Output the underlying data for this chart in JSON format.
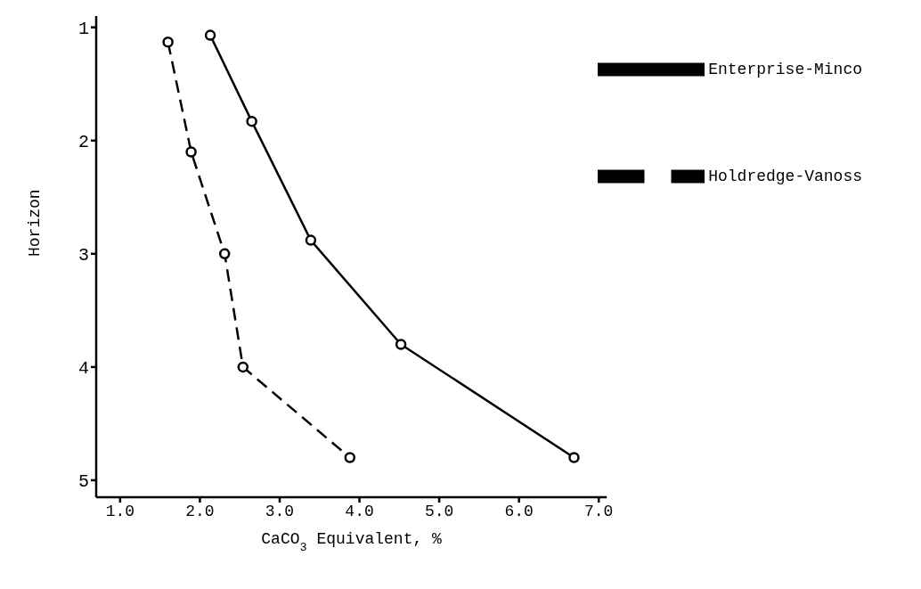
{
  "chart_data": {
    "type": "line",
    "xlabel": "CaCO$_{3}$ Equivalent, %",
    "ylabel": "Horizon",
    "xlim": [
      0.7,
      7.1
    ],
    "xticks": [
      {
        "value": 1,
        "label": "1.0"
      },
      {
        "value": 2,
        "label": "2.0"
      },
      {
        "value": 3,
        "label": "3.0"
      },
      {
        "value": 4,
        "label": "4.0"
      },
      {
        "value": 5,
        "label": "5.0"
      },
      {
        "value": 6,
        "label": "6.0"
      },
      {
        "value": 7,
        "label": "7.0"
      }
    ],
    "ylim": [
      5.15,
      0.9
    ],
    "yticks": [
      1,
      2,
      3,
      4,
      5
    ],
    "grid": false,
    "legend": "top right",
    "marker": "circle",
    "series": [
      {
        "name": "Enterprise-Minco",
        "color": "#000000",
        "line_style": "solid",
        "x": [
          2.13,
          2.65,
          3.39,
          4.52,
          6.69
        ],
        "values": [
          1.07,
          1.83,
          2.88,
          3.8,
          4.8
        ]
      },
      {
        "name": "Holdredge-Vanoss",
        "color": "#000000",
        "line_style": "dashed",
        "x": [
          1.6,
          1.89,
          2.31,
          2.54,
          3.88
        ],
        "values": [
          1.13,
          2.1,
          3.0,
          4.0,
          4.8
        ]
      }
    ]
  }
}
